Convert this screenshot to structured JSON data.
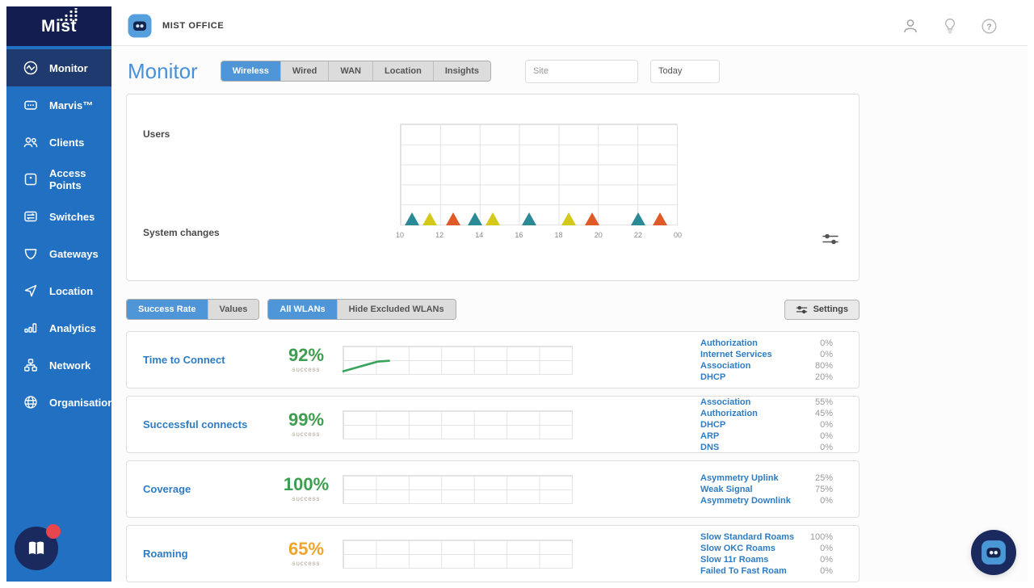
{
  "app": {
    "brand": "Mist",
    "org_name": "MIST OFFICE"
  },
  "sidebar": {
    "items": [
      {
        "label": "Monitor",
        "active": true
      },
      {
        "label": "Marvis™",
        "active": false
      },
      {
        "label": "Clients",
        "active": false
      },
      {
        "label": "Access Points",
        "active": false
      },
      {
        "label": "Switches",
        "active": false
      },
      {
        "label": "Gateways",
        "active": false
      },
      {
        "label": "Location",
        "active": false
      },
      {
        "label": "Analytics",
        "active": false
      },
      {
        "label": "Network",
        "active": false
      },
      {
        "label": "Organisation",
        "active": false
      }
    ]
  },
  "page": {
    "title": "Monitor",
    "tabs": [
      {
        "label": "Wireless",
        "active": true
      },
      {
        "label": "Wired",
        "active": false
      },
      {
        "label": "WAN",
        "active": false
      },
      {
        "label": "Location",
        "active": false
      },
      {
        "label": "Insights",
        "active": false
      }
    ],
    "site_placeholder": "Site",
    "time_range": "Today"
  },
  "chart_data": {
    "type": "scatter",
    "title": "Users / System changes timeline",
    "users_label": "Users",
    "system_changes_label": "System changes",
    "x_ticks": [
      "10",
      "12",
      "14",
      "16",
      "18",
      "20",
      "22",
      "00"
    ],
    "x_range_hours": [
      10,
      24
    ],
    "grid": {
      "cols": 7,
      "rows": 5
    },
    "users_series": [],
    "event_colors": {
      "teal": "#2a8a96",
      "yellow": "#d4c81b",
      "orange": "#e05a28"
    },
    "system_change_events": [
      {
        "hour": 10.6,
        "color": "#2a8a96"
      },
      {
        "hour": 11.5,
        "color": "#d4c81b"
      },
      {
        "hour": 12.7,
        "color": "#e05a28"
      },
      {
        "hour": 13.8,
        "color": "#2a8a96"
      },
      {
        "hour": 14.7,
        "color": "#d4c81b"
      },
      {
        "hour": 16.5,
        "color": "#2a8a96"
      },
      {
        "hour": 18.5,
        "color": "#d4c81b"
      },
      {
        "hour": 19.7,
        "color": "#e05a28"
      },
      {
        "hour": 22.0,
        "color": "#2a8a96"
      },
      {
        "hour": 23.1,
        "color": "#e05a28"
      }
    ]
  },
  "toolbar": {
    "view_toggle": [
      {
        "label": "Success Rate",
        "active": true
      },
      {
        "label": "Values",
        "active": false
      }
    ],
    "wlan_toggle": [
      {
        "label": "All WLANs",
        "active": true
      },
      {
        "label": "Hide Excluded WLANs",
        "active": false
      }
    ],
    "settings_label": "Settings"
  },
  "cards": [
    {
      "title": "Time to Connect",
      "value": "92%",
      "unit": "success",
      "value_color": "#3d9e4e",
      "spark": [
        [
          0,
          0.9
        ],
        [
          0.15,
          0.55
        ],
        [
          0.2,
          0.52
        ]
      ],
      "breakdown": [
        {
          "label": "Authorization",
          "value": "0%"
        },
        {
          "label": "Internet Services",
          "value": "0%"
        },
        {
          "label": "Association",
          "value": "80%"
        },
        {
          "label": "DHCP",
          "value": "20%"
        }
      ]
    },
    {
      "title": "Successful connects",
      "value": "99%",
      "unit": "success",
      "value_color": "#3d9e4e",
      "spark": [],
      "breakdown": [
        {
          "label": "Association",
          "value": "55%"
        },
        {
          "label": "Authorization",
          "value": "45%"
        },
        {
          "label": "DHCP",
          "value": "0%"
        },
        {
          "label": "ARP",
          "value": "0%"
        },
        {
          "label": "DNS",
          "value": "0%"
        }
      ]
    },
    {
      "title": "Coverage",
      "value": "100%",
      "unit": "success",
      "value_color": "#3d9e4e",
      "spark": [],
      "breakdown": [
        {
          "label": "Asymmetry Uplink",
          "value": "25%"
        },
        {
          "label": "Weak Signal",
          "value": "75%"
        },
        {
          "label": "Asymmetry Downlink",
          "value": "0%"
        }
      ]
    },
    {
      "title": "Roaming",
      "value": "65%",
      "unit": "success",
      "value_color": "#f0a42c",
      "spark": [],
      "breakdown": [
        {
          "label": "Slow Standard Roams",
          "value": "100%"
        },
        {
          "label": "Slow OKC Roams",
          "value": "0%"
        },
        {
          "label": "Slow 11r Roams",
          "value": "0%"
        },
        {
          "label": "Failed To Fast Roam",
          "value": "0%"
        }
      ]
    }
  ]
}
